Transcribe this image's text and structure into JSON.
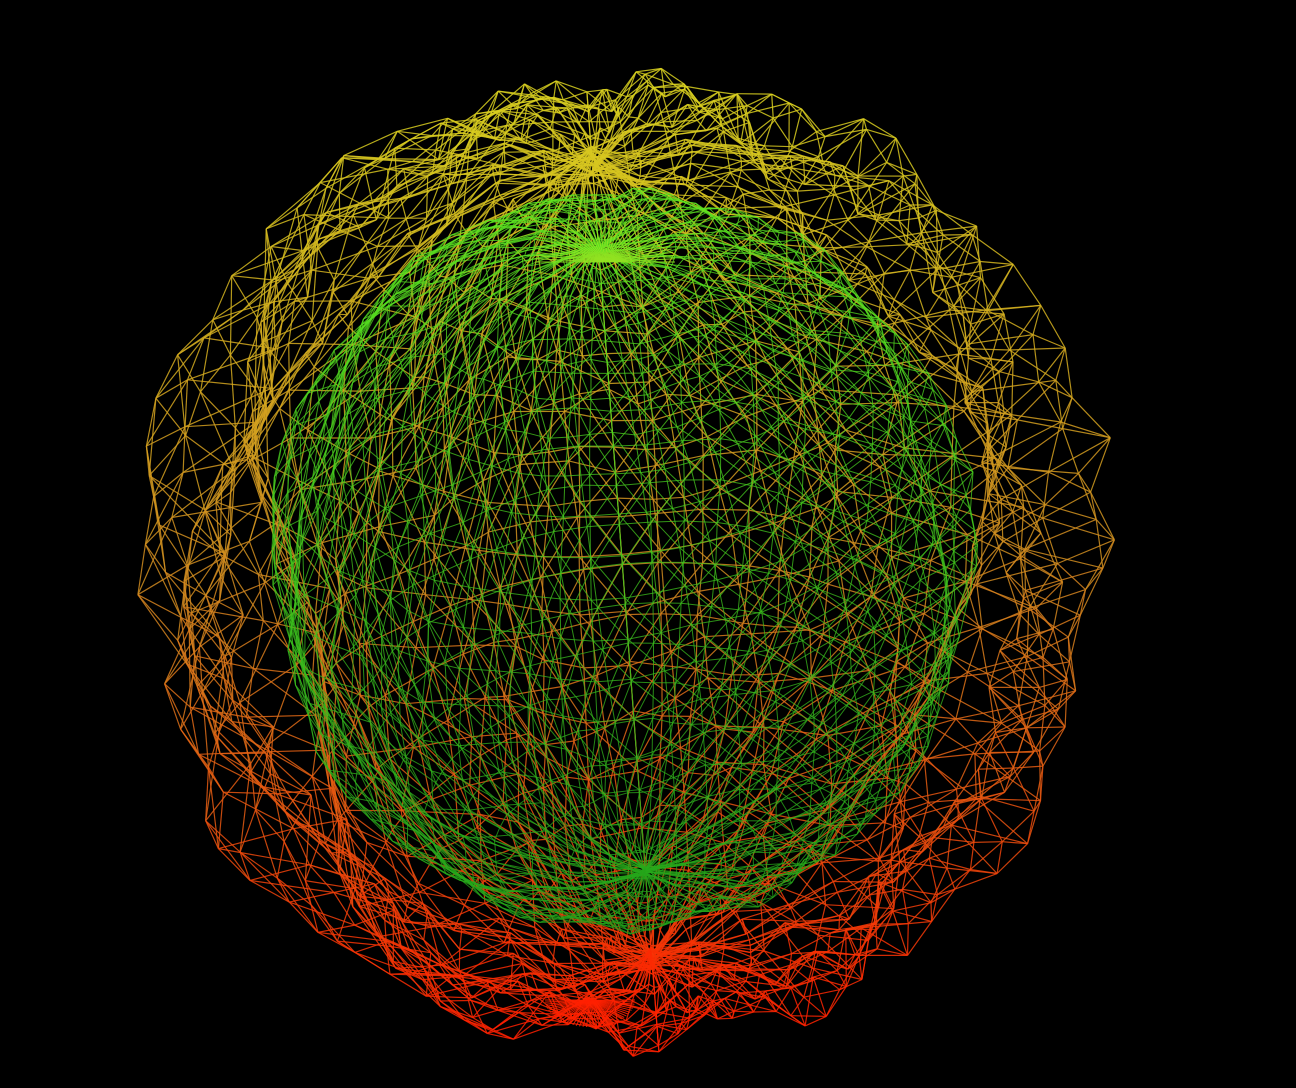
{
  "scene": {
    "subject": "wireframe-blob",
    "render_style": "wireframe",
    "background_color": "#000000",
    "gradient": {
      "top_color": "#d8d020",
      "mid_color": "#d08a20",
      "bottom_color": "#ff2000",
      "core_top_color": "#66ee22",
      "core_bottom_color": "#1a9a1a"
    },
    "mesh": {
      "rings": 28,
      "segments": 60,
      "spikes": 11
    }
  }
}
